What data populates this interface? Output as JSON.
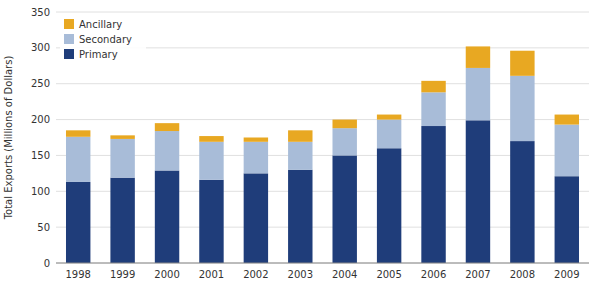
{
  "chart_data": {
    "type": "bar",
    "stacked": true,
    "y_label": "Total Exports (Millions of Dollars)",
    "categories": [
      "1998",
      "1999",
      "2000",
      "2001",
      "2002",
      "2003",
      "2004",
      "2005",
      "2006",
      "2007",
      "2008",
      "2009"
    ],
    "series": [
      {
        "name": "Primary",
        "color": "#1f3d7a",
        "values": [
          113,
          119,
          129,
          116,
          125,
          130,
          150,
          160,
          191,
          199,
          170,
          121
        ]
      },
      {
        "name": "Secondary",
        "color": "#a8bcd8",
        "values": [
          63,
          54,
          55,
          53,
          44,
          39,
          38,
          40,
          47,
          73,
          91,
          72
        ]
      },
      {
        "name": "Ancillary",
        "color": "#e8a822",
        "values": [
          9,
          5,
          11,
          8,
          6,
          16,
          12,
          7,
          16,
          30,
          35,
          14
        ]
      }
    ],
    "ylim": [
      0,
      350
    ],
    "yticks": [
      0,
      50,
      100,
      150,
      200,
      250,
      300,
      350
    ],
    "grid": true,
    "legend": "upper left"
  }
}
